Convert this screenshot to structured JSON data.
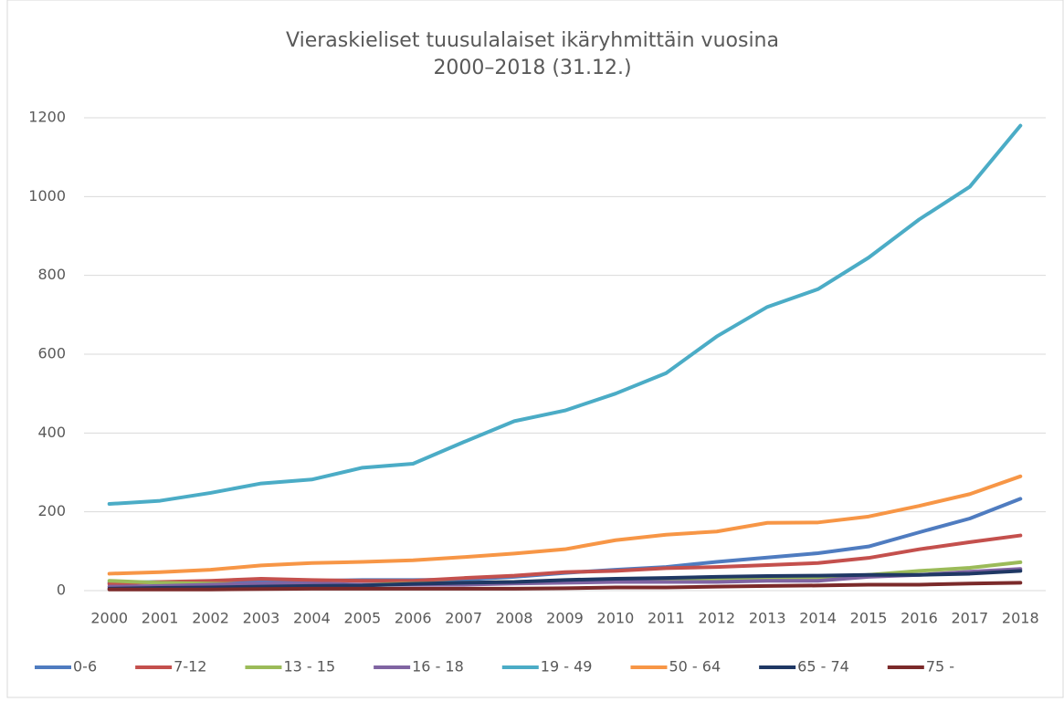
{
  "chart_data": {
    "type": "line",
    "title": [
      "Vieraskieliset tuusulalaiset ikäryhmittäin vuosina",
      "2000–2018 (31.12.)"
    ],
    "categories": [
      "2000",
      "2001",
      "2002",
      "2003",
      "2004",
      "2005",
      "2006",
      "2007",
      "2008",
      "2009",
      "2010",
      "2011",
      "2012",
      "2013",
      "2014",
      "2015",
      "2016",
      "2017",
      "2018"
    ],
    "series": [
      {
        "name": "0-6",
        "color": "#4f7cc0",
        "values": [
          20,
          22,
          22,
          25,
          25,
          27,
          27,
          28,
          35,
          45,
          53,
          60,
          73,
          84,
          95,
          112,
          148,
          183,
          233
        ]
      },
      {
        "name": "7-12",
        "color": "#c4504d",
        "values": [
          17,
          22,
          25,
          30,
          27,
          25,
          25,
          32,
          38,
          47,
          50,
          57,
          60,
          65,
          70,
          83,
          105,
          123,
          140
        ]
      },
      {
        "name": "13 - 15",
        "color": "#9bbb59",
        "values": [
          25,
          20,
          18,
          15,
          15,
          15,
          18,
          20,
          22,
          25,
          25,
          27,
          28,
          30,
          32,
          40,
          50,
          58,
          72
        ]
      },
      {
        "name": "16 - 18",
        "color": "#8064a2",
        "values": [
          10,
          12,
          15,
          18,
          18,
          15,
          15,
          15,
          18,
          20,
          22,
          22,
          22,
          25,
          25,
          35,
          40,
          48,
          55
        ]
      },
      {
        "name": "19 - 49",
        "color": "#4bacc6",
        "values": [
          220,
          228,
          248,
          272,
          282,
          312,
          322,
          377,
          430,
          457,
          500,
          552,
          645,
          720,
          765,
          845,
          942,
          1025,
          1180
        ]
      },
      {
        "name": "50 - 64",
        "color": "#f79646",
        "values": [
          43,
          47,
          53,
          64,
          70,
          73,
          77,
          85,
          94,
          105,
          128,
          142,
          150,
          172,
          173,
          188,
          215,
          245,
          290
        ]
      },
      {
        "name": "65 - 74",
        "color": "#1f3864",
        "values": [
          5,
          7,
          8,
          10,
          12,
          13,
          17,
          20,
          22,
          27,
          30,
          32,
          35,
          37,
          38,
          40,
          40,
          43,
          50
        ]
      },
      {
        "name": "75 -",
        "color": "#7b2a2a",
        "values": [
          3,
          3,
          3,
          4,
          5,
          5,
          5,
          5,
          5,
          6,
          8,
          8,
          10,
          12,
          13,
          15,
          15,
          18,
          20
        ]
      }
    ],
    "ylim": [
      0,
      1200
    ],
    "yticks": [
      0,
      200,
      400,
      600,
      800,
      1000,
      1200
    ],
    "grid": true,
    "legend": "bottom"
  }
}
